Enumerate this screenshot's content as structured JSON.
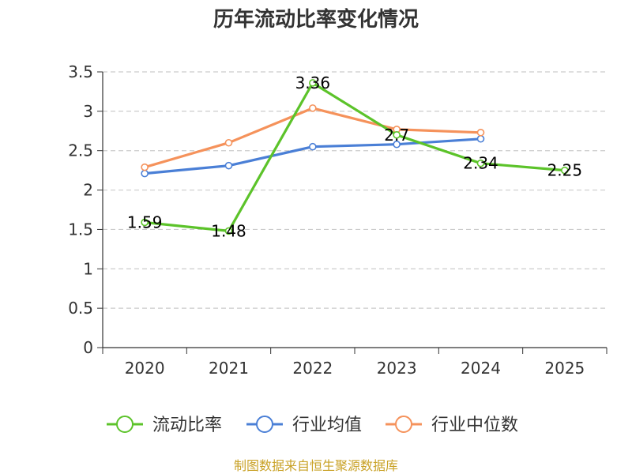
{
  "chart_data": {
    "type": "line",
    "title": "历年流动比率变化情况",
    "categories": [
      "2020",
      "2021",
      "2022",
      "2023",
      "2024",
      "2025"
    ],
    "ylim": [
      0,
      3.5
    ],
    "yticks": [
      "0",
      "0.5",
      "1",
      "1.5",
      "2",
      "2.5",
      "3",
      "3.5"
    ],
    "grid": true,
    "legend_position": "bottom",
    "series": [
      {
        "name": "流动比率",
        "color": "#5cc32a",
        "values": [
          1.59,
          1.48,
          3.36,
          2.7,
          2.34,
          2.25
        ],
        "labels": [
          "1.59",
          "1.48",
          "3.36",
          "2.7",
          "2.34",
          "2.25"
        ]
      },
      {
        "name": "行业均值",
        "color": "#4a7fd6",
        "values": [
          2.21,
          2.31,
          2.55,
          2.58,
          2.65,
          null
        ]
      },
      {
        "name": "行业中位数",
        "color": "#f5925b",
        "values": [
          2.29,
          2.6,
          3.04,
          2.77,
          2.73,
          null
        ]
      }
    ],
    "source": "制图数据来自恒生聚源数据库"
  }
}
